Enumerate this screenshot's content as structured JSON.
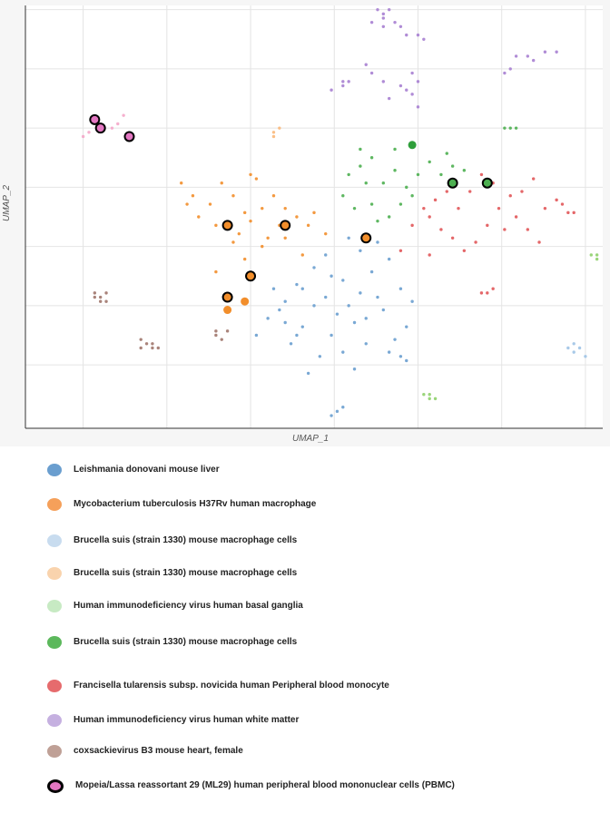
{
  "chart_data": {
    "type": "scatter",
    "xlabel": "UMAP_1",
    "ylabel": "UMAP_2",
    "grid": true,
    "xlim": [
      0,
      100
    ],
    "ylim": [
      0,
      100
    ],
    "series": [
      {
        "name": "Leishmania donovani mouse liver",
        "color": "#6a9ecf",
        "points": [
          [
            50,
            38
          ],
          [
            52,
            41
          ],
          [
            55,
            35
          ],
          [
            47,
            34
          ],
          [
            45,
            30
          ],
          [
            58,
            32
          ],
          [
            60,
            37
          ],
          [
            42,
            26
          ],
          [
            48,
            24
          ],
          [
            53,
            22
          ],
          [
            57,
            25
          ],
          [
            62,
            28
          ],
          [
            65,
            33
          ],
          [
            66,
            24
          ],
          [
            64,
            21
          ],
          [
            46,
            20
          ],
          [
            44,
            28
          ],
          [
            50,
            29
          ],
          [
            54,
            27
          ],
          [
            59,
            20
          ],
          [
            61,
            44
          ],
          [
            56,
            45
          ],
          [
            63,
            40
          ],
          [
            67,
            30
          ],
          [
            51,
            17
          ],
          [
            49,
            13
          ],
          [
            55,
            18
          ],
          [
            43,
            33
          ],
          [
            40,
            22
          ],
          [
            58,
            42
          ],
          [
            52,
            31
          ],
          [
            47,
            22
          ],
          [
            63,
            18
          ],
          [
            56,
            29
          ],
          [
            48,
            33
          ],
          [
            61,
            31
          ],
          [
            59,
            26
          ],
          [
            53,
            36
          ],
          [
            45,
            25
          ],
          [
            57,
            14
          ],
          [
            54,
            4
          ],
          [
            53,
            3
          ],
          [
            55,
            5
          ],
          [
            65,
            17
          ],
          [
            66,
            16
          ]
        ]
      },
      {
        "name": "Mycobacterium tuberculosis H37Rv human macrophage",
        "color": "#f28e2b",
        "points": [
          [
            27,
            58
          ],
          [
            29,
            55
          ],
          [
            32,
            53
          ],
          [
            30,
            50
          ],
          [
            33,
            48
          ],
          [
            37,
            46
          ],
          [
            39,
            49
          ],
          [
            41,
            52
          ],
          [
            43,
            55
          ],
          [
            45,
            52
          ],
          [
            47,
            50
          ],
          [
            49,
            48
          ],
          [
            52,
            46
          ],
          [
            45,
            45
          ],
          [
            42,
            45
          ],
          [
            38,
            51
          ],
          [
            36,
            55
          ],
          [
            34,
            58
          ],
          [
            28,
            53
          ],
          [
            41,
            43
          ],
          [
            48,
            41
          ],
          [
            50,
            51
          ],
          [
            44,
            48
          ],
          [
            39,
            60
          ],
          [
            40,
            59
          ],
          [
            33,
            37
          ],
          [
            38,
            40
          ],
          [
            36,
            44
          ]
        ]
      },
      {
        "name": "Brucella suis (strain 1330) mouse macrophage cells",
        "color": "#9fc3e6",
        "points": [
          [
            94,
            19
          ],
          [
            95,
            18
          ],
          [
            96,
            19
          ],
          [
            95,
            20
          ],
          [
            97,
            17
          ]
        ]
      },
      {
        "name": "Brucella suis (strain 1330) mouse macrophage cells",
        "color": "#f9b87a",
        "points": [
          [
            43,
            70
          ],
          [
            44,
            71
          ],
          [
            43,
            69
          ]
        ]
      },
      {
        "name": "Human immunodeficiency virus human basal ganglia",
        "color": "#8fd06b",
        "points": [
          [
            69,
            8
          ],
          [
            70,
            7
          ],
          [
            71,
            7
          ],
          [
            70,
            8
          ],
          [
            99,
            41
          ],
          [
            99,
            40
          ],
          [
            98,
            41
          ]
        ]
      },
      {
        "name": "Brucella suis (strain 1330) mouse macrophage cells",
        "color": "#4caf50",
        "points": [
          [
            56,
            60
          ],
          [
            58,
            62
          ],
          [
            60,
            64
          ],
          [
            62,
            58
          ],
          [
            64,
            61
          ],
          [
            55,
            55
          ],
          [
            57,
            52
          ],
          [
            60,
            53
          ],
          [
            63,
            50
          ],
          [
            66,
            57
          ],
          [
            68,
            60
          ],
          [
            70,
            63
          ],
          [
            72,
            60
          ],
          [
            74,
            62
          ],
          [
            76,
            61
          ],
          [
            67,
            55
          ],
          [
            65,
            53
          ],
          [
            59,
            58
          ],
          [
            61,
            49
          ],
          [
            58,
            66
          ],
          [
            64,
            66
          ],
          [
            73,
            65
          ],
          [
            83,
            71
          ],
          [
            84,
            71
          ],
          [
            85,
            71
          ]
        ]
      },
      {
        "name": "Francisella tularensis subsp. novicida human Peripheral blood monocyte",
        "color": "#e15759",
        "points": [
          [
            67,
            48
          ],
          [
            70,
            50
          ],
          [
            72,
            47
          ],
          [
            74,
            45
          ],
          [
            76,
            42
          ],
          [
            78,
            44
          ],
          [
            80,
            48
          ],
          [
            82,
            52
          ],
          [
            84,
            55
          ],
          [
            85,
            50
          ],
          [
            87,
            47
          ],
          [
            89,
            44
          ],
          [
            90,
            52
          ],
          [
            92,
            54
          ],
          [
            94,
            51
          ],
          [
            95,
            51
          ],
          [
            93,
            53
          ],
          [
            81,
            58
          ],
          [
            79,
            60
          ],
          [
            77,
            56
          ],
          [
            75,
            52
          ],
          [
            73,
            56
          ],
          [
            71,
            54
          ],
          [
            69,
            52
          ],
          [
            83,
            47
          ],
          [
            86,
            56
          ],
          [
            88,
            59
          ],
          [
            80,
            32
          ],
          [
            81,
            33
          ],
          [
            79,
            32
          ],
          [
            65,
            42
          ],
          [
            70,
            41
          ]
        ]
      },
      {
        "name": "Human immunodeficiency virus human white matter",
        "color": "#a77fd1",
        "points": [
          [
            61,
            99
          ],
          [
            62,
            98
          ],
          [
            63,
            99
          ],
          [
            62,
            97
          ],
          [
            64,
            96
          ],
          [
            65,
            95
          ],
          [
            60,
            96
          ],
          [
            62,
            95
          ],
          [
            66,
            93
          ],
          [
            68,
            93
          ],
          [
            69,
            92
          ],
          [
            85,
            88
          ],
          [
            87,
            88
          ],
          [
            88,
            87
          ],
          [
            83,
            84
          ],
          [
            84,
            85
          ],
          [
            90,
            89
          ],
          [
            92,
            89
          ],
          [
            59,
            86
          ],
          [
            60,
            84
          ],
          [
            55,
            82
          ],
          [
            53,
            80
          ],
          [
            56,
            82
          ],
          [
            55,
            81
          ],
          [
            65,
            81
          ],
          [
            66,
            80
          ],
          [
            67,
            79
          ],
          [
            63,
            78
          ],
          [
            62,
            82
          ],
          [
            68,
            82
          ],
          [
            67,
            84
          ],
          [
            68,
            76
          ]
        ]
      },
      {
        "name": "coxsackievirus B3 mouse heart, female",
        "color": "#a0766b",
        "points": [
          [
            12,
            32
          ],
          [
            13,
            31
          ],
          [
            14,
            32
          ],
          [
            13,
            30
          ],
          [
            14,
            30
          ],
          [
            12,
            31
          ],
          [
            20,
            21
          ],
          [
            21,
            20
          ],
          [
            22,
            20
          ],
          [
            20,
            19
          ],
          [
            22,
            19
          ],
          [
            23,
            19
          ],
          [
            33,
            22
          ],
          [
            34,
            21
          ],
          [
            35,
            23
          ],
          [
            33,
            23
          ]
        ]
      },
      {
        "name": "Mopeia/Lassa reassortant 29 (ML29) human peripheral blood mononuclear cells (PBMC)",
        "color": "#f4a7c9",
        "points": [
          [
            15,
            71
          ],
          [
            16,
            72
          ],
          [
            17,
            74
          ],
          [
            11,
            70
          ],
          [
            10,
            69
          ]
        ]
      }
    ],
    "highlighted": [
      {
        "series": "Mopeia/Lassa reassortant 29 (ML29) human peripheral blood mononuclear cells (PBMC)",
        "color": "#e377c2",
        "points": [
          [
            12,
            73
          ],
          [
            13,
            71
          ],
          [
            18,
            69
          ]
        ]
      },
      {
        "series": "Mycobacterium tuberculosis H37Rv human macrophage",
        "color": "#f28e2b",
        "points": [
          [
            35,
            48
          ],
          [
            45,
            48
          ],
          [
            59,
            45
          ],
          [
            39,
            36
          ],
          [
            35,
            31
          ]
        ]
      },
      {
        "series": "Brucella suis (strain 1330) mouse macrophage cells",
        "color": "#4caf50",
        "points": [
          [
            74,
            58
          ],
          [
            80,
            58
          ]
        ]
      }
    ],
    "highlighted_unoutlined": [
      {
        "series": "Brucella suis (strain 1330) mouse macrophage cells",
        "color": "#2e9e3a",
        "points": [
          [
            67,
            67
          ]
        ]
      },
      {
        "series": "Mycobacterium tuberculosis H37Rv human macrophage",
        "color": "#f28e2b",
        "points": [
          [
            38,
            30
          ],
          [
            35,
            28
          ]
        ]
      }
    ],
    "legend": [
      {
        "label": "Leishmania donovani mouse liver",
        "color": "#6a9ecf",
        "outlined": false
      },
      {
        "label": "Mycobacterium tuberculosis H37Rv human macrophage",
        "color": "#f5a05a",
        "outlined": false
      },
      {
        "label": "Brucella suis (strain 1330) mouse macrophage cells",
        "color": "#c8dcef",
        "outlined": false
      },
      {
        "label": "Brucella suis (strain 1330) mouse macrophage cells",
        "color": "#f9d3ad",
        "outlined": false
      },
      {
        "label": "Human immunodeficiency virus human basal ganglia",
        "color": "#c7eac3",
        "outlined": false
      },
      {
        "label": "Brucella suis (strain 1330) mouse macrophage cells",
        "color": "#5cb85c",
        "outlined": false
      },
      {
        "label": "Francisella tularensis subsp. novicida human Peripheral blood monocyte",
        "color": "#e66b6d",
        "outlined": false
      },
      {
        "label": "Human immunodeficiency virus human white matter",
        "color": "#c5b0e0",
        "outlined": false
      },
      {
        "label": "coxsackievirus B3 mouse heart, female",
        "color": "#bfa096",
        "outlined": false
      },
      {
        "label": "Mopeia/Lassa reassortant 29 (ML29) human peripheral blood mononuclear cells (PBMC)",
        "color": "#e377c2",
        "outlined": true
      }
    ]
  }
}
